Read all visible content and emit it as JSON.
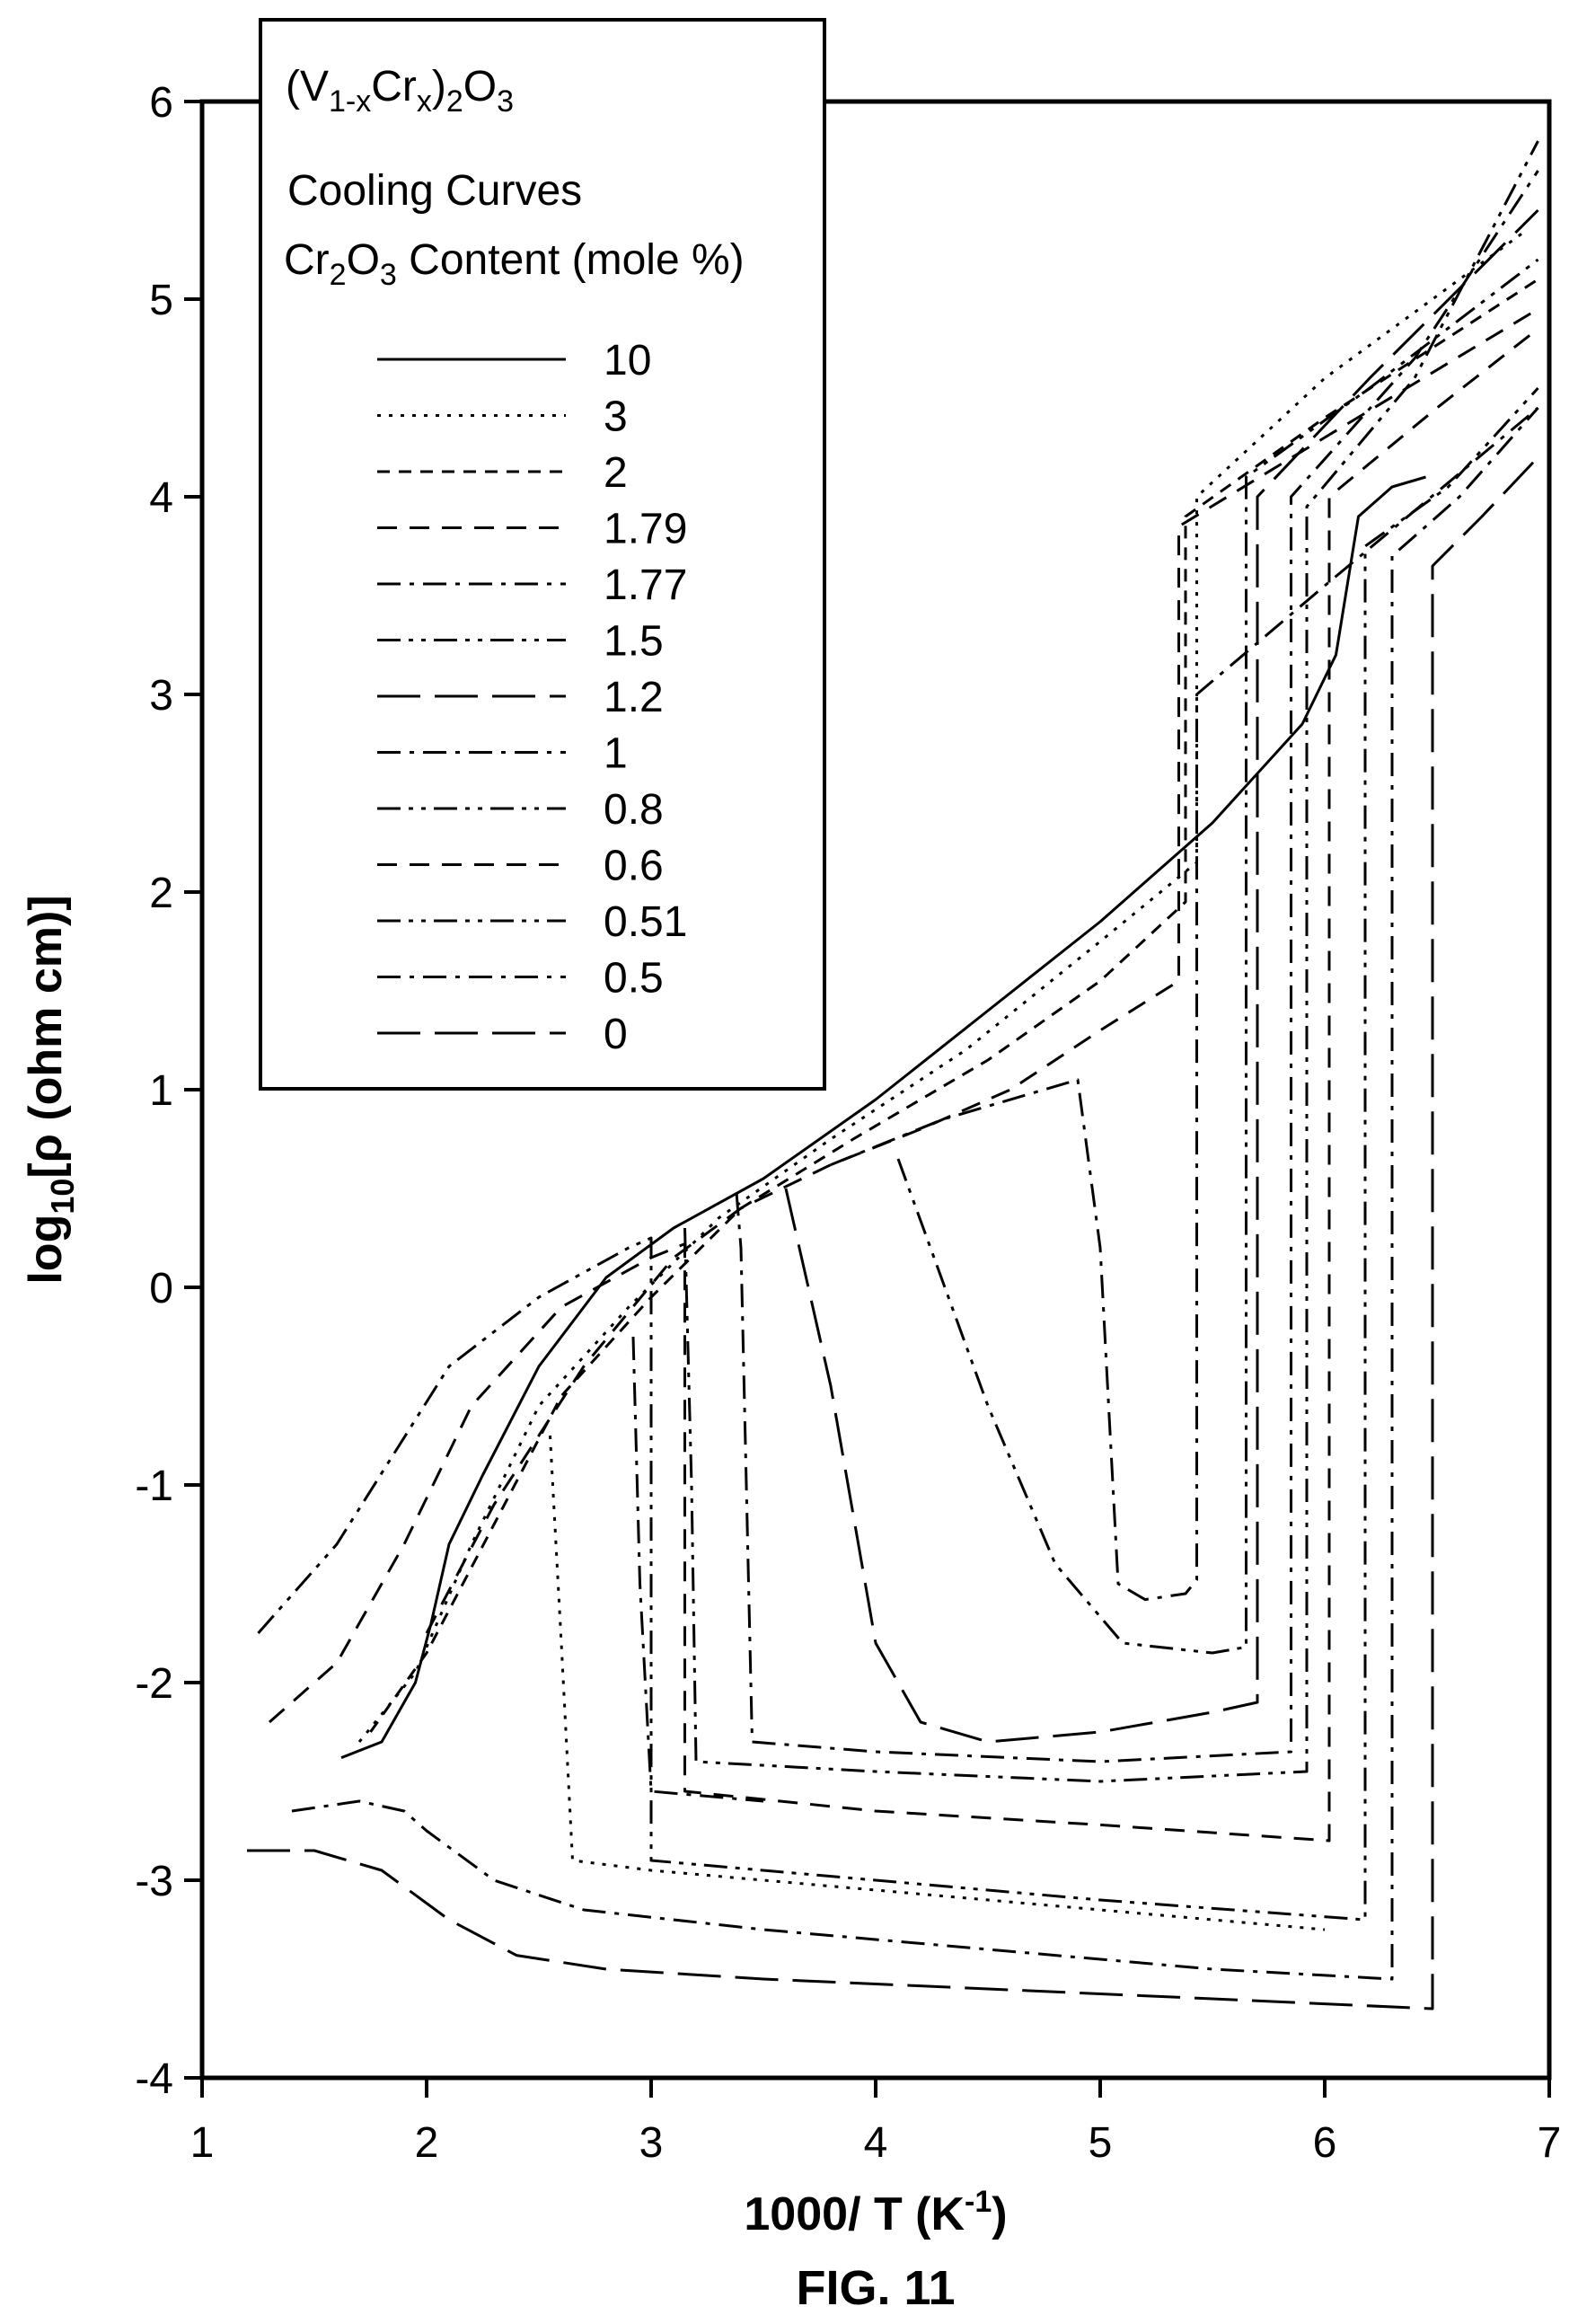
{
  "figure_label": "FIG. 11",
  "chart_data": {
    "type": "line",
    "legend_title": "(V1-xCrx)2O3",
    "legend_subtitle_1": "Cooling Curves",
    "legend_subtitle_2": "Cr2O3 Content (mole %)",
    "xlabel": "1000/ T (K-1)",
    "ylabel": "log10[ρ (ohm cm)]",
    "xlim": [
      1,
      7
    ],
    "ylim": [
      -4,
      6
    ],
    "x_ticks": [
      "1",
      "2",
      "3",
      "4",
      "5",
      "6",
      "7"
    ],
    "y_ticks": [
      "-4",
      "-3",
      "-2",
      "-1",
      "0",
      "1",
      "2",
      "3",
      "4",
      "5",
      "6"
    ],
    "legend_position": "top-left",
    "grid": false,
    "series": [
      {
        "name": "10",
        "dash": "solid",
        "points": [
          [
            1.62,
            -2.38
          ],
          [
            1.8,
            -2.3
          ],
          [
            1.95,
            -2.0
          ],
          [
            2.02,
            -1.7
          ],
          [
            2.1,
            -1.3
          ],
          [
            2.25,
            -0.95
          ],
          [
            2.5,
            -0.4
          ],
          [
            2.8,
            0.05
          ],
          [
            3.1,
            0.3
          ],
          [
            3.5,
            0.55
          ],
          [
            4.0,
            0.95
          ],
          [
            4.5,
            1.4
          ],
          [
            5.0,
            1.85
          ],
          [
            5.5,
            2.35
          ],
          [
            5.9,
            2.85
          ],
          [
            6.05,
            3.2
          ],
          [
            6.1,
            3.55
          ],
          [
            6.15,
            3.9
          ],
          [
            6.3,
            4.05
          ],
          [
            6.45,
            4.1
          ]
        ]
      },
      {
        "name": "3",
        "dash": "dot",
        "points": [
          [
            1.7,
            -2.3
          ],
          [
            1.95,
            -1.95
          ],
          [
            2.2,
            -1.3
          ],
          [
            2.5,
            -0.6
          ],
          [
            2.9,
            -0.1
          ],
          [
            3.3,
            0.35
          ],
          [
            3.8,
            0.75
          ],
          [
            4.4,
            1.2
          ],
          [
            5.0,
            1.75
          ],
          [
            5.43,
            2.15
          ],
          [
            5.43,
            4.0
          ],
          [
            6.0,
            4.6
          ],
          [
            6.9,
            5.35
          ]
        ]
      },
      {
        "name": "2",
        "dash": "short",
        "points": [
          [
            1.75,
            -2.25
          ],
          [
            2.0,
            -1.85
          ],
          [
            2.3,
            -1.2
          ],
          [
            2.6,
            -0.55
          ],
          [
            3.0,
            -0.05
          ],
          [
            3.4,
            0.4
          ],
          [
            3.9,
            0.75
          ],
          [
            4.5,
            1.15
          ],
          [
            5.0,
            1.55
          ],
          [
            5.38,
            1.95
          ],
          [
            5.38,
            3.9
          ],
          [
            6.0,
            4.4
          ],
          [
            6.95,
            5.1
          ]
        ]
      },
      {
        "name": "1.79",
        "dash": "medium",
        "points": [
          [
            2.0,
            -1.75
          ],
          [
            2.3,
            -1.1
          ],
          [
            2.7,
            -0.4
          ],
          [
            3.1,
            0.15
          ],
          [
            3.4,
            0.4
          ],
          [
            3.8,
            0.62
          ],
          [
            4.2,
            0.8
          ],
          [
            4.6,
            1.0
          ],
          [
            5.0,
            1.3
          ],
          [
            5.35,
            1.55
          ],
          [
            5.35,
            3.85
          ],
          [
            6.0,
            4.3
          ],
          [
            6.95,
            4.95
          ]
        ]
      },
      {
        "name": "1.77",
        "dash": "dashdot",
        "points": [
          [
            3.8,
            0.62
          ],
          [
            4.3,
            0.85
          ],
          [
            4.9,
            1.05
          ],
          [
            5.0,
            0.2
          ],
          [
            5.08,
            -1.5
          ],
          [
            5.2,
            -1.58
          ],
          [
            5.38,
            -1.55
          ],
          [
            5.43,
            -1.48
          ],
          [
            5.43,
            3.0
          ],
          [
            6.0,
            3.55
          ],
          [
            6.95,
            4.45
          ]
        ]
      },
      {
        "name": "1.5",
        "dash": "dashdotdot",
        "points": [
          [
            4.1,
            0.65
          ],
          [
            4.5,
            -0.6
          ],
          [
            4.8,
            -1.4
          ],
          [
            5.1,
            -1.8
          ],
          [
            5.5,
            -1.85
          ],
          [
            5.65,
            -1.82
          ],
          [
            5.65,
            4.1
          ],
          [
            6.2,
            4.55
          ],
          [
            6.95,
            5.2
          ]
        ]
      },
      {
        "name": "1.2",
        "dash": "long",
        "points": [
          [
            3.6,
            0.5
          ],
          [
            3.8,
            -0.5
          ],
          [
            4.0,
            -1.8
          ],
          [
            4.2,
            -2.2
          ],
          [
            4.5,
            -2.3
          ],
          [
            5.0,
            -2.25
          ],
          [
            5.5,
            -2.15
          ],
          [
            5.7,
            -2.1
          ],
          [
            5.7,
            4.0
          ],
          [
            6.2,
            4.6
          ],
          [
            6.95,
            5.45
          ]
        ]
      },
      {
        "name": "1",
        "dash": "dashdot",
        "points": [
          [
            3.38,
            0.48
          ],
          [
            3.4,
            0.2
          ],
          [
            3.45,
            -2.3
          ],
          [
            4.0,
            -2.35
          ],
          [
            5.0,
            -2.4
          ],
          [
            5.85,
            -2.35
          ],
          [
            5.85,
            4.0
          ],
          [
            6.4,
            4.7
          ],
          [
            6.95,
            5.65
          ]
        ]
      },
      {
        "name": "0.8",
        "dash": "dashdotdot",
        "points": [
          [
            3.15,
            0.3
          ],
          [
            3.18,
            -1.0
          ],
          [
            3.2,
            -2.4
          ],
          [
            4.0,
            -2.45
          ],
          [
            5.0,
            -2.5
          ],
          [
            5.92,
            -2.45
          ],
          [
            5.92,
            3.95
          ],
          [
            6.4,
            4.6
          ],
          [
            6.95,
            5.8
          ]
        ]
      },
      {
        "name": "0.6",
        "dash": "medium",
        "points": [
          [
            1.3,
            -2.2
          ],
          [
            1.6,
            -1.9
          ],
          [
            1.9,
            -1.3
          ],
          [
            2.2,
            -0.6
          ],
          [
            2.6,
            -0.1
          ],
          [
            3.0,
            0.15
          ],
          [
            3.15,
            0.22
          ],
          [
            3.15,
            -2.55
          ],
          [
            4.0,
            -2.65
          ],
          [
            5.0,
            -2.72
          ],
          [
            6.02,
            -2.8
          ],
          [
            6.02,
            4.0
          ],
          [
            6.5,
            4.45
          ],
          [
            6.95,
            4.85
          ]
        ]
      },
      {
        "name": "0.51",
        "dash": "dashdotdot",
        "points": [
          [
            1.25,
            -1.75
          ],
          [
            1.6,
            -1.3
          ],
          [
            1.85,
            -0.85
          ],
          [
            2.1,
            -0.4
          ],
          [
            2.5,
            -0.05
          ],
          [
            2.9,
            0.2
          ],
          [
            3.0,
            0.25
          ],
          [
            3.0,
            -2.9
          ],
          [
            4.0,
            -3.0
          ],
          [
            5.0,
            -3.1
          ],
          [
            6.18,
            -3.2
          ],
          [
            6.18,
            3.75
          ],
          [
            6.55,
            4.05
          ],
          [
            6.95,
            4.55
          ]
        ]
      },
      {
        "name": "0.5",
        "dash": "dashdot",
        "points": [
          [
            1.4,
            -2.65
          ],
          [
            1.7,
            -2.6
          ],
          [
            1.9,
            -2.65
          ],
          [
            2.0,
            -2.75
          ],
          [
            2.3,
            -3.0
          ],
          [
            2.7,
            -3.15
          ],
          [
            3.5,
            -3.25
          ],
          [
            4.5,
            -3.35
          ],
          [
            5.5,
            -3.45
          ],
          [
            6.3,
            -3.5
          ],
          [
            6.3,
            3.7
          ],
          [
            6.6,
            4.0
          ],
          [
            6.95,
            4.45
          ]
        ]
      },
      {
        "name": "0",
        "dash": "long",
        "points": [
          [
            1.2,
            -2.85
          ],
          [
            1.5,
            -2.85
          ],
          [
            1.8,
            -2.95
          ],
          [
            2.1,
            -3.2
          ],
          [
            2.4,
            -3.38
          ],
          [
            2.8,
            -3.45
          ],
          [
            3.5,
            -3.5
          ],
          [
            4.5,
            -3.55
          ],
          [
            5.5,
            -3.6
          ],
          [
            6.48,
            -3.65
          ],
          [
            6.48,
            3.65
          ],
          [
            6.7,
            3.9
          ],
          [
            6.95,
            4.2
          ]
        ]
      },
      {
        "name": "",
        "dash": "dot",
        "points": [
          [
            2.55,
            -0.75
          ],
          [
            2.6,
            -1.8
          ],
          [
            2.65,
            -2.9
          ],
          [
            3.0,
            -2.95
          ],
          [
            4.0,
            -3.05
          ],
          [
            5.0,
            -3.15
          ],
          [
            6.0,
            -3.25
          ]
        ]
      },
      {
        "name": "",
        "dash": "dashdot",
        "points": [
          [
            2.92,
            -0.25
          ],
          [
            2.95,
            -1.5
          ],
          [
            3.0,
            -2.55
          ],
          [
            3.5,
            -2.6
          ]
        ]
      }
    ]
  }
}
